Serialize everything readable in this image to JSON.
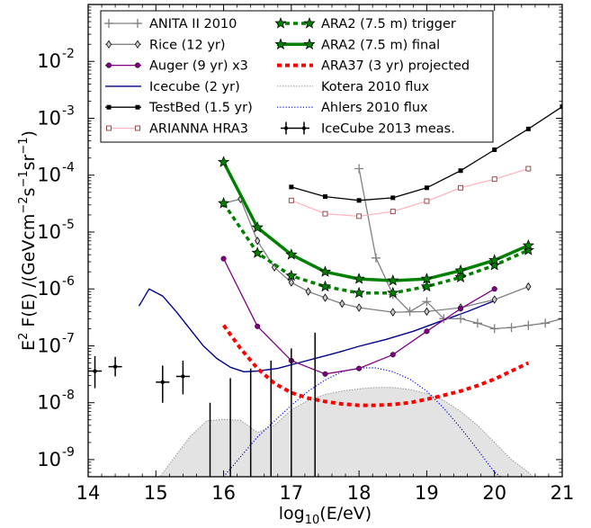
{
  "chart_data": {
    "type": "line",
    "xlabel": "log10(E/eV)",
    "ylabel": "E2 F(E) /(GeVcm-2 s-1 sr-1)",
    "xlim": [
      14,
      21
    ],
    "ylim": [
      5e-10,
      0.1
    ],
    "yscale": "log",
    "grid": false,
    "legend_position": "top",
    "x_ticks": [
      "14",
      "15",
      "16",
      "17",
      "18",
      "19",
      "20",
      "21"
    ],
    "y_ticks": [
      {
        "exp": "-9",
        "value": 1e-09
      },
      {
        "exp": "-8",
        "value": 1e-08
      },
      {
        "exp": "-7",
        "value": 1e-07
      },
      {
        "exp": "-6",
        "value": 1e-06
      },
      {
        "exp": "-5",
        "value": 1e-05
      },
      {
        "exp": "-4",
        "value": 0.0001
      },
      {
        "exp": "-3",
        "value": 0.001
      },
      {
        "exp": "-2",
        "value": 0.01
      }
    ],
    "series": [
      {
        "name": "ANITA II 2010",
        "color": "#808080",
        "marker": "plus",
        "style": "solid",
        "width": 1.3,
        "x": [
          18.0,
          18.25,
          18.5,
          18.75,
          19.0,
          19.25,
          19.5,
          19.75,
          20.0,
          20.25,
          20.5,
          20.75,
          21.0
        ],
        "y": [
          0.00013,
          3.5e-06,
          8e-07,
          4e-07,
          6e-07,
          3e-07,
          3e-07,
          2.5e-07,
          2e-07,
          2.1e-07,
          2.3e-07,
          2.5e-07,
          3e-07
        ]
      },
      {
        "name": "Rice (12 yr)",
        "color": "#808080",
        "marker": "diamond",
        "style": "solid",
        "width": 1.3,
        "x": [
          16.0,
          16.25,
          16.5,
          16.75,
          17.0,
          17.25,
          17.5,
          17.75,
          18.0,
          18.5,
          19.0,
          19.5,
          20.0,
          20.5
        ],
        "y": [
          3.2e-05,
          3.8e-05,
          7e-06,
          2.4e-06,
          1.3e-06,
          9e-07,
          7e-07,
          5.5e-07,
          4.7e-07,
          3.9e-07,
          4e-07,
          4.7e-07,
          6.5e-07,
          1.1e-06
        ]
      },
      {
        "name": "Auger (9 yr) x3",
        "color": "#800080",
        "marker": "circle",
        "style": "solid",
        "width": 1.3,
        "x": [
          16.0,
          16.5,
          17.0,
          17.5,
          18.0,
          18.5,
          19.0,
          19.5,
          20.0
        ],
        "y": [
          3.4e-06,
          2.2e-07,
          5.5e-08,
          3.2e-08,
          4e-08,
          7e-08,
          1.8e-07,
          4.5e-07,
          1e-06
        ]
      },
      {
        "name": "Icecube (2 yr)",
        "color": "#00008b",
        "marker": "none",
        "style": "solid",
        "width": 1.4,
        "x": [
          14.75,
          14.9,
          15.1,
          15.3,
          15.5,
          15.7,
          15.9,
          16.1,
          16.3,
          16.5,
          16.8,
          17.1,
          17.4,
          17.7,
          18.0,
          18.4,
          18.8,
          19.2,
          19.6,
          20.0
        ],
        "y": [
          5e-07,
          1e-06,
          7.5e-07,
          4e-07,
          2e-07,
          1e-07,
          6e-08,
          4.2e-08,
          3.5e-08,
          3.6e-08,
          4e-08,
          5e-08,
          6.2e-08,
          7.7e-08,
          9.8e-08,
          1.3e-07,
          1.8e-07,
          2.7e-07,
          4e-07,
          6.2e-07
        ]
      },
      {
        "name": "TestBed (1.5 yr)",
        "color": "#000000",
        "marker": "square",
        "style": "solid",
        "width": 1.3,
        "x": [
          17.0,
          17.5,
          18.0,
          18.5,
          19.0,
          19.5,
          20.0,
          20.5,
          21.0
        ],
        "y": [
          6.2e-05,
          4.2e-05,
          3.6e-05,
          4e-05,
          6e-05,
          0.00012,
          0.00028,
          0.00065,
          0.0016
        ]
      },
      {
        "name": "ARIANNA HRA3",
        "color": "#ffb6c1",
        "marker": "square-open",
        "style": "solid",
        "width": 1.3,
        "x": [
          17.0,
          17.5,
          18.0,
          18.5,
          19.0,
          19.5,
          20.0,
          20.5
        ],
        "y": [
          3.6e-05,
          2.1e-05,
          1.9e-05,
          2.3e-05,
          3.5e-05,
          6e-05,
          8.5e-05,
          0.00013
        ]
      },
      {
        "name": "ARA2 (7.5 m) trigger",
        "color": "#008000",
        "marker": "star",
        "style": "dotted",
        "width": 3.5,
        "x": [
          16.0,
          16.5,
          17.0,
          17.5,
          18.0,
          18.5,
          19.0,
          19.5,
          20.0,
          20.5
        ],
        "y": [
          3.2e-05,
          4.3e-06,
          1.7e-06,
          1.1e-06,
          8.5e-07,
          8.5e-07,
          1.1e-06,
          1.6e-06,
          2.6e-06,
          4.8e-06
        ]
      },
      {
        "name": "ARA2 (7.5 m) final",
        "color": "#008000",
        "marker": "star",
        "style": "solid",
        "width": 3.5,
        "x": [
          16.0,
          16.5,
          17.0,
          17.5,
          18.0,
          18.5,
          19.0,
          19.5,
          20.0,
          20.5
        ],
        "y": [
          0.00017,
          1.2e-05,
          4e-06,
          2e-06,
          1.5e-06,
          1.4e-06,
          1.5e-06,
          2.1e-06,
          3.2e-06,
          5.8e-06
        ]
      },
      {
        "name": "ARA37 (3 yr) projected",
        "color": "#ff0000",
        "marker": "none",
        "style": "dotted",
        "width": 4,
        "x": [
          16.0,
          16.25,
          16.5,
          16.75,
          17.0,
          17.25,
          17.5,
          17.75,
          18.0,
          18.25,
          18.5,
          18.75,
          19.0,
          19.25,
          19.5,
          19.75,
          20.0,
          20.25,
          20.5
        ],
        "y": [
          2.3e-07,
          9e-08,
          4e-08,
          2.2e-08,
          1.5e-08,
          1.2e-08,
          1.05e-08,
          9.5e-09,
          9e-09,
          9e-09,
          9.3e-09,
          1e-08,
          1.15e-08,
          1.35e-08,
          1.6e-08,
          2e-08,
          2.6e-08,
          3.6e-08,
          5e-08
        ]
      },
      {
        "name": "Kotera 2010 flux",
        "color": "#aaaaaa",
        "marker": "none",
        "style": "band",
        "width": 1,
        "x": [
          15.0,
          15.25,
          15.5,
          15.75,
          16.0,
          16.25,
          16.5,
          16.75,
          17.0,
          17.25,
          17.5,
          17.75,
          18.0,
          18.25,
          18.5,
          18.75,
          19.0,
          19.25,
          19.5,
          19.75,
          20.0,
          20.25,
          20.5,
          20.6
        ],
        "y": [
          4e-10,
          1e-09,
          2.5e-09,
          4.8e-09,
          5.1e-09,
          4.9e-09,
          3e-09,
          4e-09,
          7.5e-09,
          1.1e-08,
          1.4e-08,
          1.6e-08,
          1.75e-08,
          1.85e-08,
          1.85e-08,
          1.7e-08,
          1.45e-08,
          1.1e-08,
          7e-09,
          4e-09,
          2e-09,
          1e-09,
          6e-10,
          4.5e-10
        ]
      },
      {
        "name": "Ahlers 2010 flux",
        "color": "#0000ff",
        "marker": "none",
        "style": "finedot",
        "width": 1.2,
        "x": [
          16.0,
          16.5,
          17.0,
          17.25,
          17.5,
          17.75,
          18.0,
          18.25,
          18.5,
          18.75,
          19.0,
          19.25,
          19.5,
          19.75,
          20.0,
          20.2
        ],
        "y": [
          5e-10,
          2.5e-09,
          9e-09,
          1.6e-08,
          2.5e-08,
          3.5e-08,
          4.1e-08,
          4.1e-08,
          3.5e-08,
          2.6e-08,
          1.6e-08,
          8e-09,
          3.6e-09,
          1.5e-09,
          6e-10,
          4e-10
        ]
      },
      {
        "name": "IceCube 2013 meas.",
        "color": "#000000",
        "marker": "errorbar",
        "style": "none",
        "width": 1.4,
        "x": [
          14.1,
          14.4,
          15.1,
          15.4,
          15.8,
          16.1,
          16.4,
          16.7,
          17.0,
          17.35
        ],
        "y": [
          3.6e-08,
          4.3e-08,
          2.3e-08,
          2.9e-08,
          1e-09,
          1e-09,
          1e-09,
          1e-09,
          1e-09,
          1e-09
        ],
        "ylow": [
          1.8e-08,
          2.9e-08,
          1e-08,
          1.4e-08,
          4e-10,
          4e-10,
          4e-10,
          4e-10,
          4e-10,
          4e-10
        ],
        "yhigh": [
          6.6e-08,
          6.4e-08,
          4.5e-08,
          5.5e-08,
          1e-08,
          2.7e-08,
          4e-08,
          5.5e-08,
          9e-08,
          1.7e-07
        ],
        "xerr": [
          0.1,
          0.1,
          0.1,
          0.1,
          0,
          0,
          0,
          0,
          0,
          0
        ]
      }
    ]
  }
}
